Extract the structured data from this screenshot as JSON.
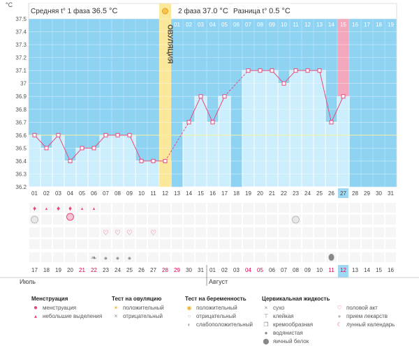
{
  "header": {
    "phase1_label": "Средняя t° 1 фаза",
    "phase1_value": "36.5 °C",
    "phase2_label": "2 фаза",
    "phase2_value": "37.0 °C",
    "diff_label": "Разница t°",
    "diff_value": "0.5 °C"
  },
  "chart_data": {
    "type": "line",
    "ylabel": "°C",
    "ylim": [
      36.2,
      37.5
    ],
    "y_ticks": [
      "36.2",
      "36.3",
      "36.4",
      "36.5",
      "36.6",
      "36.7",
      "36.8",
      "36.9",
      "37",
      "37.1",
      "37.2",
      "37.3",
      "37.4",
      "37.5"
    ],
    "cycle_days": [
      "01",
      "02",
      "03",
      "04",
      "05",
      "06",
      "07",
      "08",
      "09",
      "10",
      "11",
      "12",
      "13",
      "14",
      "15",
      "16",
      "17",
      "18",
      "19",
      "20",
      "21",
      "22",
      "23",
      "24",
      "25",
      "26",
      "27",
      "28",
      "29",
      "30",
      "31"
    ],
    "second_row_days": [
      "01",
      "02",
      "03",
      "04",
      "05",
      "06",
      "07",
      "08",
      "09",
      "10",
      "11",
      "12",
      "13",
      "14",
      "15",
      "16",
      "17",
      "18",
      "19"
    ],
    "ovulation_label": "ОВУЛЯЦИЯ",
    "ovulation_day": 12,
    "coverline": 36.6,
    "highlight_day": 27,
    "temperatures": [
      36.6,
      36.5,
      36.6,
      36.4,
      36.5,
      36.5,
      36.6,
      36.6,
      36.6,
      36.4,
      36.4,
      36.4,
      null,
      36.7,
      36.9,
      36.7,
      36.9,
      null,
      37.1,
      37.1,
      37.1,
      37.0,
      37.1,
      37.1,
      37.1,
      36.7,
      36.9,
      null,
      null,
      null,
      null
    ],
    "dashed_segments": [
      [
        12,
        14
      ],
      [
        17,
        19
      ]
    ],
    "calendar_dates": [
      "17",
      "18",
      "19",
      "20",
      "21",
      "22",
      "23",
      "24",
      "25",
      "26",
      "27",
      "28",
      "29",
      "30",
      "31",
      "01",
      "02",
      "03",
      "04",
      "05",
      "06",
      "07",
      "08",
      "09",
      "10",
      "11",
      "12",
      "13",
      "14",
      "15",
      "16"
    ],
    "weekend_indices": [
      4,
      5,
      11,
      12,
      18,
      19,
      25,
      26
    ],
    "month_labels": [
      "Июль",
      "Август"
    ],
    "month_start_index": 15,
    "menstruation_days": [
      1,
      3,
      4
    ],
    "light_discharge_days": [
      2,
      5,
      6
    ],
    "intercourse_days": [
      6,
      7,
      8,
      10
    ],
    "fluid_creamy_days": [
      6
    ],
    "fluid_watery_days": [
      7,
      8,
      9
    ],
    "fluid_eggwhite_days": [
      26
    ],
    "pill_days": [
      1,
      23
    ],
    "lunar_days": [
      4
    ]
  },
  "legend": {
    "menstr": {
      "title": "Менструация",
      "items": [
        "менструация",
        "небольшие выделения"
      ]
    },
    "ovtest": {
      "title": "Тест на овуляцию",
      "items": [
        "положительный",
        "отрицательный"
      ]
    },
    "pregtest": {
      "title": "Тест на беременность",
      "items": [
        "положительный",
        "отрицательный",
        "слабоположительный"
      ]
    },
    "fluid": {
      "title": "Цервикальная жидкость",
      "items": [
        "сухо",
        "клейкая",
        "кремообразная",
        "водянистая",
        "яичный белок"
      ]
    },
    "other": {
      "items": [
        "половой акт",
        "прием лекарств",
        "лунный календарь"
      ]
    }
  },
  "colors": {
    "plot_bg": "#8fd3f3",
    "bar": "#cdeefc",
    "line": "#e8497a",
    "ovulation": "#fbe89a",
    "highlight": "#f4a8be",
    "weekend": "#e0004d",
    "day_highlight": "#9fd8f2"
  }
}
